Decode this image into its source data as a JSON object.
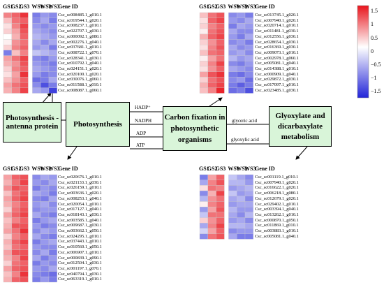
{
  "colors": {
    "high": "#e8141c",
    "mid": "#ffffff",
    "low": "#2224d8",
    "box": "#d9f5d9"
  },
  "columns": [
    "GS1",
    "GS2",
    "GS3",
    "WS1",
    "WS2",
    "WS3"
  ],
  "gene_header": "Gene ID",
  "boxes": {
    "antenna": "Photosynthesis - antenna protein",
    "photosynthesis": "Photosynthesis",
    "carbon": "Carbon fixation in photosynthetic organisms",
    "glyoxylate": "Glyoxylate and dicarbaxylate metabolism"
  },
  "cofactors": {
    "hadp": "HADP⁺",
    "nadph": "NADPH",
    "adp": "ADP",
    "atp": "ATP",
    "glyceric": "glyceric acid",
    "glyoxylic": "glyoxylic acid"
  },
  "scale": {
    "t0": "1.5",
    "t1": "1",
    "t2": "0.5",
    "t3": "0",
    "t4": "−0.5",
    "t5": "−1",
    "t6": "−1.5"
  },
  "panels": [
    {
      "name": "antenna",
      "genes": [
        "Csc_sc008485.1_g010.1",
        "Csc_sc019544.1_g020.1",
        "Csc_sc008237.1_g010.1",
        "Csc_sc022707.1_g030.1",
        "Csc_sc000092.1_g080.1",
        "Csc_sc002276.1_g040.1",
        "Csc_sc037681.1_g010.1",
        "Csc_sc008722.1_g070.1",
        "Csc_sc028341.1_g030.1",
        "Csc_sc010792.1_g040.1",
        "Csc_sc024151.1_g020.1",
        "Csc_sc020100.1_g020.1",
        "Csc_sc030076.1_g060.1",
        "Csc_sc011588.1_g010.1",
        "Csc_sc008087.1_g060.1"
      ],
      "values": [
        [
          0.8,
          1.0,
          1.3,
          -0.9,
          -0.7,
          -0.8
        ],
        [
          0.4,
          0.9,
          1.0,
          -0.8,
          -0.6,
          -0.9
        ],
        [
          0.2,
          0.8,
          1.2,
          -0.7,
          -0.8,
          -0.7
        ],
        [
          0.3,
          0.6,
          1.1,
          -0.6,
          -0.7,
          -0.8
        ],
        [
          0.0,
          0.5,
          1.0,
          -0.5,
          -0.6,
          -0.7
        ],
        [
          0.1,
          0.7,
          0.9,
          -0.6,
          -0.8,
          -0.6
        ],
        [
          0.3,
          0.8,
          1.0,
          -0.7,
          -0.6,
          -0.9
        ],
        [
          -0.9,
          0.4,
          0.8,
          -0.4,
          -0.5,
          -0.6
        ],
        [
          0.6,
          0.9,
          1.2,
          -0.8,
          -0.9,
          -0.7
        ],
        [
          0.5,
          0.7,
          1.1,
          -0.7,
          -0.8,
          -0.9
        ],
        [
          0.3,
          0.8,
          1.0,
          -0.6,
          -0.7,
          -0.8
        ],
        [
          0.2,
          0.6,
          1.3,
          -0.7,
          -0.9,
          -0.8
        ],
        [
          0.4,
          0.7,
          1.0,
          -1.0,
          -0.9,
          -0.6
        ],
        [
          0.6,
          0.9,
          1.1,
          -0.8,
          -1.2,
          -0.9
        ],
        [
          0.5,
          0.8,
          1.2,
          -0.6,
          -0.7,
          -1.3
        ]
      ]
    },
    {
      "name": "carbon",
      "genes": [
        "Csc_sc013745.1_g020.1",
        "Csc_sc007940.1_g020.1",
        "Csc_sc020714.1_g010.1",
        "Csc_sc011481.1_g030.1",
        "Csc_sc012556.1_g030.1",
        "Csc_sc028654.1_g030.1",
        "Csc_sc016369.1_g030.1",
        "Csc_sc009073.1_g010.1",
        "Csc_sc002978.1_g060.1",
        "Csc_sc005081.1_g040.1",
        "Csc_sc014388.1_g010.1",
        "Csc_sc000909.1_g040.1",
        "Csc_sc029872.1_g030.1",
        "Csc_sc017097.1_g010.1",
        "Csc_sc023485.1_g030.1"
      ],
      "values": [
        [
          0.4,
          0.9,
          1.1,
          -0.8,
          -0.7,
          -0.9
        ],
        [
          0.2,
          1.0,
          1.2,
          -0.7,
          -0.8,
          -0.6
        ],
        [
          0.3,
          0.8,
          1.0,
          -0.9,
          -0.6,
          -0.7
        ],
        [
          0.1,
          0.9,
          1.1,
          -0.6,
          -0.8,
          -0.8
        ],
        [
          0.5,
          1.0,
          1.2,
          -0.7,
          -0.9,
          -0.6
        ],
        [
          0.3,
          0.7,
          1.0,
          -0.8,
          -0.7,
          -0.9
        ],
        [
          0.2,
          0.8,
          1.1,
          -0.6,
          -0.8,
          -0.7
        ],
        [
          0.4,
          0.9,
          1.0,
          -0.7,
          -0.6,
          -0.8
        ],
        [
          0.1,
          0.6,
          0.9,
          -0.5,
          -0.7,
          -0.6
        ],
        [
          0.3,
          0.8,
          1.2,
          -0.8,
          -0.9,
          -0.7
        ],
        [
          0.2,
          0.7,
          1.0,
          -0.6,
          -0.7,
          -0.8
        ],
        [
          0.6,
          1.1,
          1.3,
          -0.9,
          -1.0,
          -0.8
        ],
        [
          0.3,
          0.9,
          1.1,
          -0.8,
          -0.7,
          -1.0
        ],
        [
          0.5,
          1.0,
          1.2,
          -0.9,
          -1.1,
          -0.9
        ],
        [
          0.4,
          0.8,
          1.4,
          -1.0,
          -0.9,
          -1.2
        ]
      ]
    },
    {
      "name": "photosynthesis",
      "genes": [
        "Csc_sc020676.1_g010.1",
        "Csc_sc021133.1_g030.1",
        "Csc_sc026159.1_g010.1",
        "Csc_sc003636.1_g020.1",
        "Csc_sc008253.1_g040.1",
        "Csc_sc020054.1_g010.1",
        "Csc_sc017127.1_g040.1",
        "Csc_sc018143.1_g030.1",
        "Csc_sc003585.1_g040.1",
        "Csc_sc009687.1_g030.1",
        "Csc_sc003662.1_g050.1",
        "Csc_sc024295.1_g010.1",
        "Csc_sc037443.1_g010.1",
        "Csc_sc010560.1_g050.1",
        "Csc_sc006907.1_g010.1",
        "Csc_sc000839.1_g090.1",
        "Csc_sc012504.1_g030.1",
        "Csc_sc001197.1_g070.1",
        "Csc_sc040794.1_g030.1",
        "Csc_sc063319.1_g010.1"
      ],
      "values": [
        [
          0.6,
          1.0,
          1.1,
          -0.8,
          -0.6,
          -0.7
        ],
        [
          0.5,
          0.9,
          1.2,
          -0.7,
          -0.8,
          -0.6
        ],
        [
          0.7,
          1.1,
          1.0,
          -0.9,
          -0.7,
          -0.8
        ],
        [
          0.4,
          0.9,
          1.1,
          -0.6,
          -0.7,
          -0.9
        ],
        [
          0.6,
          1.0,
          1.2,
          -0.8,
          -0.9,
          -0.6
        ],
        [
          0.5,
          0.8,
          1.0,
          -0.7,
          -0.6,
          -0.8
        ],
        [
          0.3,
          0.9,
          1.1,
          -0.8,
          -0.7,
          -0.7
        ],
        [
          0.6,
          1.0,
          1.2,
          -0.6,
          -0.8,
          -0.9
        ],
        [
          0.4,
          0.8,
          1.0,
          -0.9,
          -0.7,
          -0.6
        ],
        [
          0.5,
          1.1,
          1.1,
          -0.7,
          -0.9,
          -0.8
        ],
        [
          0.6,
          0.9,
          1.3,
          -0.8,
          -0.6,
          -0.7
        ],
        [
          0.3,
          0.8,
          1.0,
          -0.6,
          -0.8,
          -0.9
        ],
        [
          0.5,
          1.0,
          1.2,
          -0.9,
          -0.7,
          -0.6
        ],
        [
          0.4,
          0.9,
          1.0,
          -0.7,
          -0.8,
          -0.8
        ],
        [
          0.6,
          1.1,
          1.1,
          -0.8,
          -0.6,
          -0.9
        ],
        [
          0.5,
          0.8,
          1.2,
          -0.6,
          -0.9,
          -0.7
        ],
        [
          0.3,
          0.9,
          1.0,
          -0.9,
          -0.7,
          -0.8
        ],
        [
          0.6,
          1.0,
          1.1,
          -0.7,
          -0.8,
          -0.6
        ],
        [
          0.4,
          0.8,
          1.3,
          -0.8,
          -0.9,
          -1.0
        ],
        [
          0.5,
          1.0,
          1.1,
          -0.9,
          -0.7,
          -0.9
        ]
      ]
    },
    {
      "name": "glyoxylate",
      "genes": [
        "Csc_sc001119.1_g010.1",
        "Csc_sc007940.1_g020.1",
        "Csc_sc016622.1_g020.1",
        "Csc_sc006218.1_g080.1",
        "Csc_sc012679.1_g020.1",
        "Csc_sc029402.1_g010.1",
        "Csc_sc003394.1_g040.1",
        "Csc_sc013262.1_g010.1",
        "Csc_sc000870.1_g050.1",
        "Csc_sc011869.1_g010.1",
        "Csc_sc003883.1_g010.1",
        "Csc_sc005081.1_g040.1"
      ],
      "values": [
        [
          -0.9,
          0.6,
          1.0,
          -0.4,
          -0.6,
          -0.8
        ],
        [
          -0.6,
          0.8,
          1.1,
          -0.5,
          -0.5,
          -0.7
        ],
        [
          0.2,
          0.9,
          0.8,
          -0.7,
          -0.6,
          -0.5
        ],
        [
          -0.8,
          0.5,
          1.2,
          -0.4,
          -0.7,
          -0.6
        ],
        [
          -0.5,
          0.7,
          0.9,
          -0.6,
          -0.5,
          -0.8
        ],
        [
          0.1,
          0.8,
          1.0,
          -0.7,
          -0.6,
          -0.6
        ],
        [
          -0.7,
          0.6,
          1.1,
          -0.5,
          -0.7,
          -0.7
        ],
        [
          -0.4,
          0.9,
          0.9,
          -0.6,
          -0.8,
          -0.5
        ],
        [
          0.3,
          0.7,
          1.0,
          -0.7,
          -0.6,
          -0.8
        ],
        [
          -0.6,
          0.8,
          1.2,
          -0.5,
          -0.5,
          -0.6
        ],
        [
          -0.3,
          0.6,
          1.0,
          -0.8,
          -0.7,
          -0.7
        ],
        [
          -0.8,
          0.9,
          1.1,
          -0.6,
          -0.9,
          -0.9
        ]
      ]
    }
  ]
}
